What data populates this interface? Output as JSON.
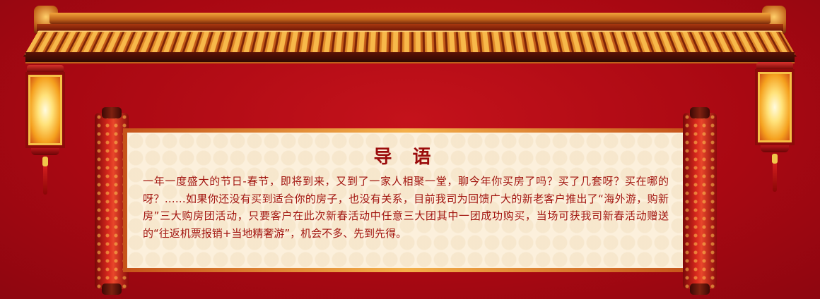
{
  "intro": {
    "title": "导 语",
    "body": "一年一度盛大的节日-春节，即将到来，又到了一家人相聚一堂，聊今年你买房了吗？买了几套呀？买在哪的呀？……如果你还没有买到适合你的房子，也没有关系，目前我司为回馈广大的新老客户推出了“海外游，购新房”三大购房团活动，只要客户在此次新春活动中任意三大团其中一团成功购买，当场可获我司新春活动赠送的“往返机票报销+当地精奢游”，机会不多、先到先得。"
  },
  "colors": {
    "background": "#b00a14",
    "text": "#a2150f",
    "title": "#9b0c0c",
    "paper": "#fcf0dc"
  },
  "icons": [
    "palace-roof",
    "lantern",
    "scroll"
  ]
}
